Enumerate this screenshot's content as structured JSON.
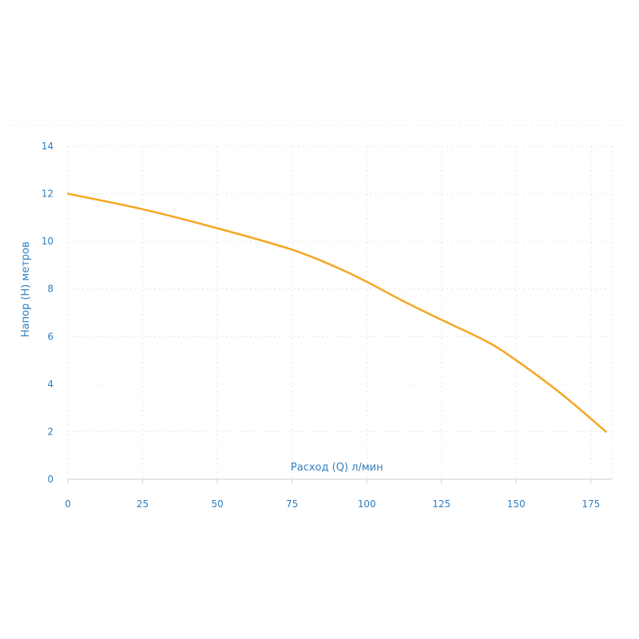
{
  "chart_data": {
    "type": "line",
    "title": "",
    "xlabel": "Расход (Q) л/мин",
    "ylabel": "Напор (H) метров",
    "xlim": [
      0,
      182
    ],
    "ylim": [
      0,
      14
    ],
    "xticks": [
      0,
      25,
      50,
      75,
      100,
      125,
      150,
      175
    ],
    "yticks": [
      0,
      2,
      4,
      6,
      8,
      10,
      12,
      14
    ],
    "grid": true,
    "legend": "none",
    "series": [
      {
        "color": "#f5a623",
        "x": [
          0,
          25,
          50,
          75,
          90,
          100,
          112,
          125,
          140,
          150,
          165,
          180
        ],
        "y": [
          12,
          11.35,
          10.55,
          9.65,
          8.9,
          8.3,
          7.5,
          6.7,
          5.8,
          5.0,
          3.6,
          2.0
        ]
      }
    ]
  }
}
